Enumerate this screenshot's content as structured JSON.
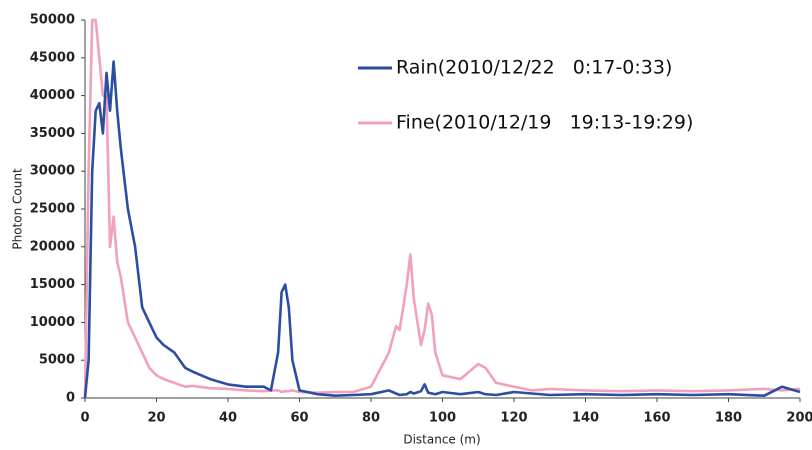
{
  "chart_data": {
    "type": "line",
    "x_label": "Distance (m)",
    "y_label": "Photon Count",
    "x": [
      0,
      1,
      2,
      3,
      4,
      5,
      6,
      7,
      8,
      9,
      10,
      12,
      14,
      16,
      18,
      20,
      22,
      25,
      28,
      30,
      35,
      40,
      45,
      50,
      52,
      54,
      55,
      56,
      57,
      58,
      60,
      65,
      70,
      75,
      80,
      85,
      87,
      88,
      90,
      91,
      92,
      94,
      95,
      96,
      97,
      98,
      100,
      105,
      110,
      112,
      115,
      120,
      125,
      130,
      140,
      150,
      160,
      170,
      180,
      190,
      195,
      200
    ],
    "series": [
      {
        "name": "Rain(2010/12/22   0:17-0:33)",
        "color": "#2b4ea2",
        "values": [
          0,
          5000,
          30000,
          38000,
          39000,
          35000,
          43000,
          38000,
          44500,
          38000,
          33000,
          25000,
          20000,
          12000,
          10000,
          8000,
          7000,
          6000,
          4000,
          3500,
          2500,
          1800,
          1500,
          1500,
          1000,
          6000,
          14000,
          15000,
          12000,
          5000,
          1000,
          500,
          300,
          400,
          500,
          1000,
          600,
          400,
          500,
          800,
          600,
          900,
          1800,
          700,
          600,
          500,
          800,
          500,
          800,
          500,
          400,
          800,
          600,
          400,
          500,
          400,
          500,
          400,
          500,
          300,
          1500,
          800
        ]
      },
      {
        "name": "Fine(2010/12/19   19:13-19:29)",
        "color": "#f2a0c0",
        "values": [
          0,
          30000,
          50000,
          50000,
          45000,
          40000,
          40000,
          20000,
          24000,
          18000,
          16000,
          10000,
          8000,
          6000,
          4000,
          3000,
          2500,
          2000,
          1500,
          1600,
          1300,
          1200,
          1000,
          900,
          1000,
          1000,
          800,
          900,
          900,
          1000,
          800,
          700,
          800,
          800,
          1500,
          6000,
          9500,
          9000,
          15000,
          19000,
          13000,
          7000,
          9000,
          12500,
          11000,
          6000,
          3000,
          2500,
          4500,
          4000,
          2000,
          1500,
          1000,
          1200,
          1000,
          900,
          1000,
          900,
          1000,
          1200,
          1000,
          1200
        ]
      }
    ],
    "xlim": [
      0,
      200
    ],
    "xticks": [
      0,
      20,
      40,
      60,
      80,
      100,
      120,
      140,
      160,
      180,
      200
    ],
    "ylim": [
      0,
      50000
    ],
    "yticks": [
      0,
      5000,
      10000,
      15000,
      20000,
      25000,
      30000,
      35000,
      40000,
      45000,
      50000
    ],
    "grid": false
  }
}
